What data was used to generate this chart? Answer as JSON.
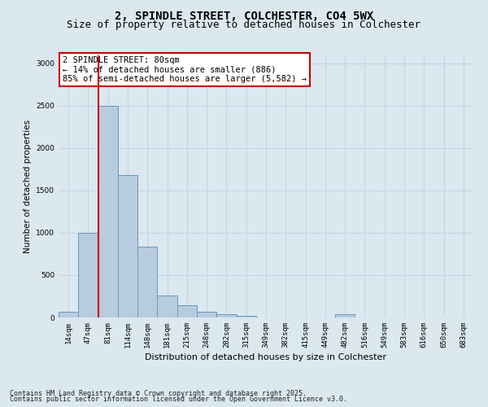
{
  "title_line1": "2, SPINDLE STREET, COLCHESTER, CO4 5WX",
  "title_line2": "Size of property relative to detached houses in Colchester",
  "xlabel": "Distribution of detached houses by size in Colchester",
  "ylabel": "Number of detached properties",
  "categories": [
    "14sqm",
    "47sqm",
    "81sqm",
    "114sqm",
    "148sqm",
    "181sqm",
    "215sqm",
    "248sqm",
    "282sqm",
    "315sqm",
    "349sqm",
    "382sqm",
    "415sqm",
    "449sqm",
    "482sqm",
    "516sqm",
    "549sqm",
    "583sqm",
    "616sqm",
    "650sqm",
    "683sqm"
  ],
  "values": [
    70,
    1000,
    2500,
    1680,
    840,
    260,
    145,
    70,
    35,
    20,
    0,
    0,
    0,
    0,
    40,
    0,
    0,
    0,
    0,
    0,
    0
  ],
  "bar_color": "#b8ccdf",
  "bar_edge_color": "#6699bb",
  "vline_color": "#cc0000",
  "vline_bin_index": 2,
  "annotation_text": "2 SPINDLE STREET: 80sqm\n← 14% of detached houses are smaller (886)\n85% of semi-detached houses are larger (5,582) →",
  "annotation_box_facecolor": "#ffffff",
  "annotation_box_edgecolor": "#cc0000",
  "ylim": [
    0,
    3100
  ],
  "yticks": [
    0,
    500,
    1000,
    1500,
    2000,
    2500,
    3000
  ],
  "grid_color": "#c8d4e4",
  "background_color": "#dce8f0",
  "footer_line1": "Contains HM Land Registry data © Crown copyright and database right 2025.",
  "footer_line2": "Contains public sector information licensed under the Open Government Licence v3.0.",
  "title_fontsize": 10,
  "subtitle_fontsize": 9,
  "ylabel_fontsize": 7.5,
  "xlabel_fontsize": 8,
  "tick_fontsize": 6.5,
  "annotation_fontsize": 7.5,
  "footer_fontsize": 6
}
